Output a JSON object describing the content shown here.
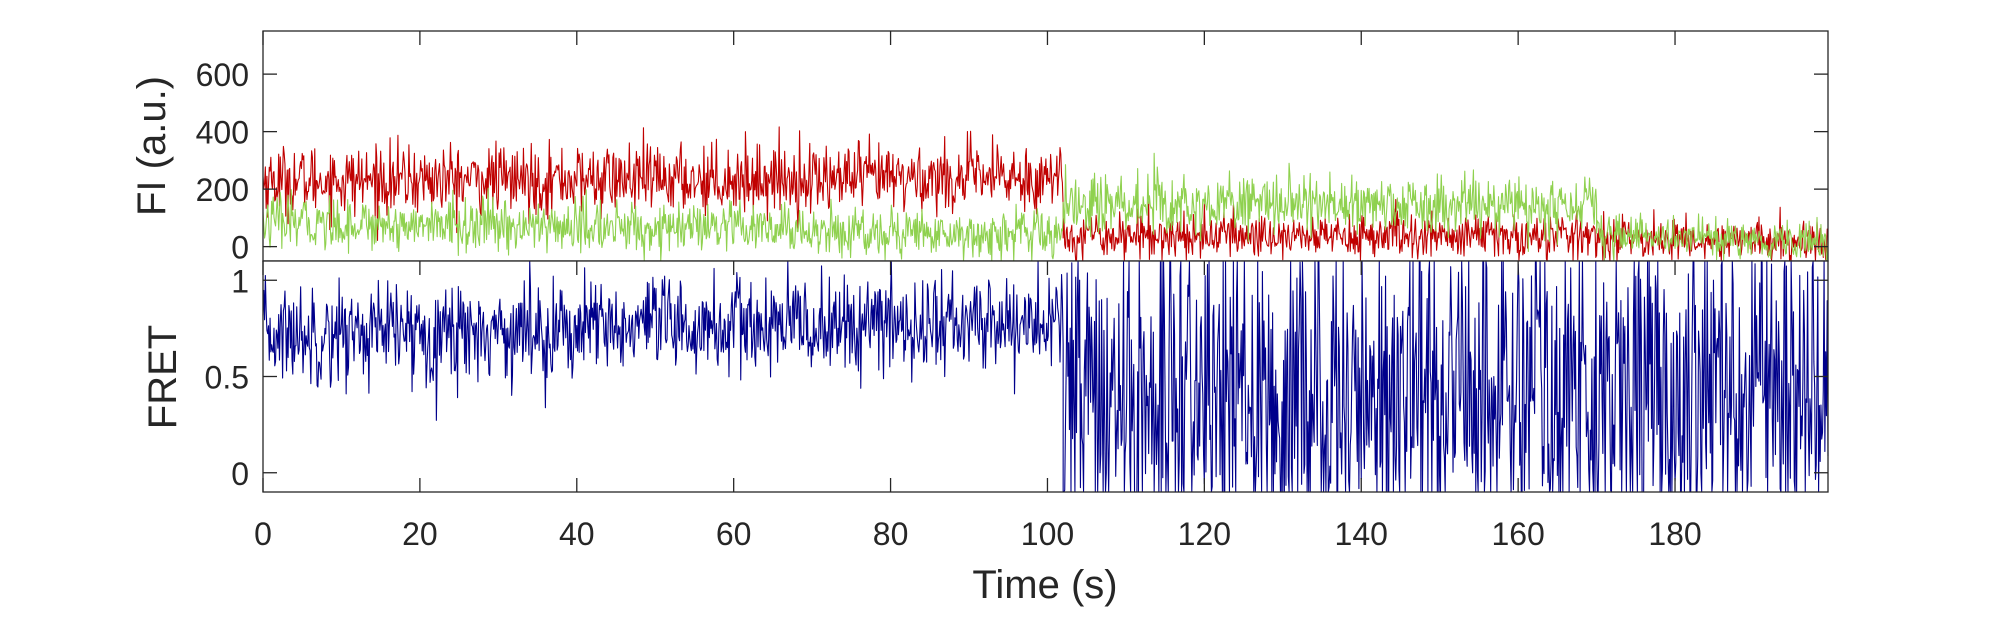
{
  "chart_data": [
    {
      "type": "line",
      "panel": "top",
      "ylabel": "FI (a.u.)",
      "xlabel": "",
      "xlim": [
        0,
        199.5
      ],
      "ylim": [
        -50,
        750
      ],
      "yticks": [
        0,
        200,
        400,
        600
      ],
      "yticklabels": [
        "0",
        "200",
        "400",
        "600"
      ],
      "grid": false,
      "sampling_interval_s": 0.1,
      "series": [
        {
          "color": "#c00000",
          "segments": [
            {
              "x_from": 0,
              "x_to": 102,
              "mean_start": 230,
              "mean_end": 240,
              "noise": 60
            },
            {
              "x_from": 102,
              "x_to": 170,
              "mean_start": 40,
              "mean_end": 35,
              "noise": 40
            },
            {
              "x_from": 170,
              "x_to": 199.5,
              "mean_start": 30,
              "mean_end": 15,
              "noise": 35
            }
          ]
        },
        {
          "color": "#8fd14f",
          "segments": [
            {
              "x_from": 0,
              "x_to": 102,
              "mean_start": 85,
              "mean_end": 40,
              "noise": 45
            },
            {
              "x_from": 102,
              "x_to": 170,
              "mean_start": 150,
              "mean_end": 140,
              "noise": 50
            },
            {
              "x_from": 170,
              "x_to": 199.5,
              "mean_start": 45,
              "mean_end": 15,
              "noise": 35
            }
          ]
        }
      ]
    },
    {
      "type": "line",
      "panel": "bottom",
      "ylabel": "FRET",
      "xlabel": "Time (s)",
      "xlim": [
        0,
        199.5
      ],
      "ylim": [
        -0.1,
        1.1
      ],
      "yticks": [
        0,
        0.5,
        1
      ],
      "yticklabels": [
        "0",
        "0.5",
        "1"
      ],
      "xticks": [
        0,
        20,
        40,
        60,
        80,
        100,
        120,
        140,
        160,
        180
      ],
      "xticklabels": [
        "0",
        "20",
        "40",
        "60",
        "80",
        "100",
        "120",
        "140",
        "160",
        "180"
      ],
      "grid": false,
      "sampling_interval_s": 0.1,
      "series": [
        {
          "color": "#00008b",
          "segments": [
            {
              "x_from": 0,
              "x_to": 102,
              "mean_start": 0.72,
              "mean_end": 0.78,
              "noise": 0.13
            },
            {
              "x_from": 102,
              "x_to": 199.5,
              "mean_start": 0.35,
              "mean_end": 0.5,
              "noise": 0.45
            }
          ]
        }
      ]
    }
  ]
}
